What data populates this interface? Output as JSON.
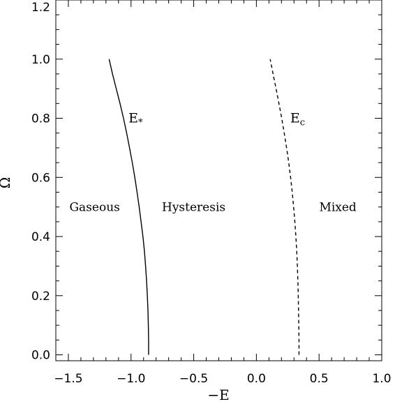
{
  "chart_data": {
    "type": "line",
    "xlabel": "−E",
    "ylabel": "Ω",
    "xlim": [
      -1.6,
      1.0
    ],
    "ylim": [
      -0.02,
      1.2
    ],
    "x_major_ticks": [
      -1.5,
      -1.0,
      -0.5,
      0.0,
      0.5,
      1.0
    ],
    "x_tick_labels": [
      "−1.5",
      "−1.0",
      "−0.5",
      "0.0",
      "0.5",
      "1.0"
    ],
    "x_minor_step": 0.1,
    "y_major_ticks": [
      0.0,
      0.2,
      0.4,
      0.6,
      0.8,
      1.0,
      1.2
    ],
    "y_tick_labels": [
      "0.0",
      "0.2",
      "0.4",
      "0.6",
      "0.8",
      "1.0",
      "1.2"
    ],
    "y_minor_step": 0.05,
    "grid": false,
    "series": [
      {
        "name": "E",
        "subscript": "*",
        "style": "solid",
        "points": [
          [
            -0.86,
            0.0
          ],
          [
            -0.86,
            0.05
          ],
          [
            -0.862,
            0.1
          ],
          [
            -0.865,
            0.15
          ],
          [
            -0.87,
            0.2
          ],
          [
            -0.876,
            0.25
          ],
          [
            -0.884,
            0.3
          ],
          [
            -0.893,
            0.35
          ],
          [
            -0.905,
            0.4
          ],
          [
            -0.92,
            0.45
          ],
          [
            -0.935,
            0.5
          ],
          [
            -0.952,
            0.55
          ],
          [
            -0.97,
            0.6
          ],
          [
            -0.99,
            0.65
          ],
          [
            -1.012,
            0.7
          ],
          [
            -1.035,
            0.75
          ],
          [
            -1.06,
            0.8
          ],
          [
            -1.088,
            0.85
          ],
          [
            -1.118,
            0.9
          ],
          [
            -1.148,
            0.95
          ],
          [
            -1.175,
            1.0
          ]
        ]
      },
      {
        "name": "E",
        "subscript": "c",
        "style": "dashed",
        "points": [
          [
            0.34,
            0.0
          ],
          [
            0.34,
            0.05
          ],
          [
            0.338,
            0.1
          ],
          [
            0.336,
            0.15
          ],
          [
            0.334,
            0.2
          ],
          [
            0.331,
            0.25
          ],
          [
            0.327,
            0.3
          ],
          [
            0.322,
            0.35
          ],
          [
            0.315,
            0.4
          ],
          [
            0.307,
            0.45
          ],
          [
            0.297,
            0.5
          ],
          [
            0.286,
            0.55
          ],
          [
            0.273,
            0.6
          ],
          [
            0.258,
            0.65
          ],
          [
            0.241,
            0.7
          ],
          [
            0.222,
            0.75
          ],
          [
            0.202,
            0.8
          ],
          [
            0.18,
            0.85
          ],
          [
            0.157,
            0.9
          ],
          [
            0.133,
            0.95
          ],
          [
            0.11,
            1.0
          ]
        ]
      }
    ],
    "annotations": [
      {
        "text": "Gaseous",
        "x": -1.29,
        "y": 0.5
      },
      {
        "text": "Hysteresis",
        "x": -0.5,
        "y": 0.5
      },
      {
        "text": "Mixed",
        "x": 0.65,
        "y": 0.5
      }
    ],
    "curve_labels": [
      {
        "series": 0,
        "x": -1.02,
        "y": 0.8
      },
      {
        "series": 1,
        "x": 0.27,
        "y": 0.8
      }
    ]
  }
}
